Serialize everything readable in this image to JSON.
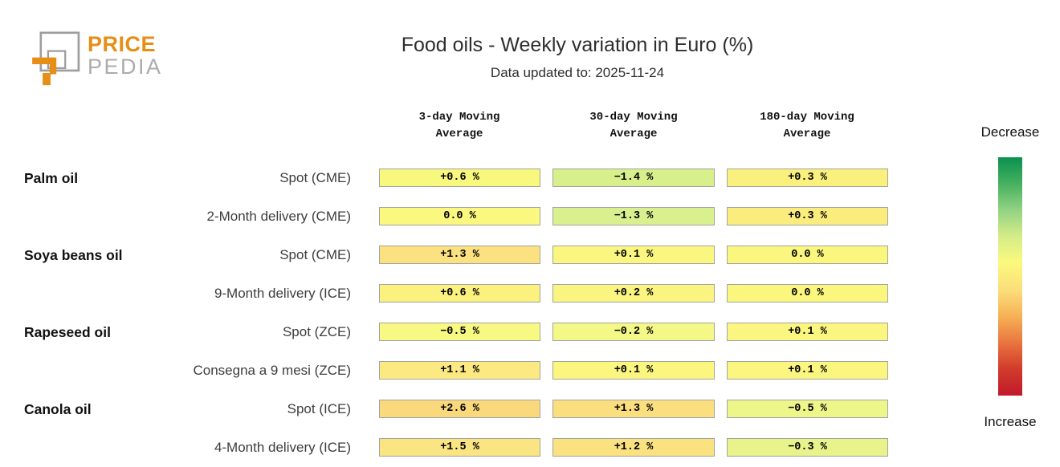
{
  "logo": {
    "brand_top": "PRICE",
    "brand_bottom": "PEDIA",
    "orange": "#e78e17",
    "gray": "#9e9e9e"
  },
  "header": {
    "title": "Food oils - Weekly variation in Euro (%)",
    "subtitle": "Data updated to: 2025-11-24"
  },
  "chart_data": {
    "type": "heatmap",
    "title": "Food oils - Weekly variation in Euro (%)",
    "subtitle": "Data updated to: 2025-11-24",
    "columns": [
      "3-day Moving Average",
      "30-day Moving Average",
      "180-day Moving Average"
    ],
    "rows": [
      {
        "group": "Palm oil",
        "label": "Spot (CME)",
        "values": [
          "+0.6 %",
          "−1.4 %",
          "+0.3 %"
        ],
        "values_num": [
          0.6,
          -1.4,
          0.3
        ],
        "colors": [
          "#f8f77e",
          "#d8ef8b",
          "#faf07d"
        ]
      },
      {
        "group": "",
        "label": "2-Month delivery (CME)",
        "values": [
          "0.0 %",
          "−1.3 %",
          "+0.3 %"
        ],
        "values_num": [
          0.0,
          -1.3,
          0.3
        ],
        "colors": [
          "#faf87e",
          "#daf08f",
          "#faec7d"
        ]
      },
      {
        "group": "Soya beans oil",
        "label": "Spot (CME)",
        "values": [
          "+1.3 %",
          "+0.1 %",
          "0.0 %"
        ],
        "values_num": [
          1.3,
          0.1,
          0.0
        ],
        "colors": [
          "#fbe180",
          "#fbf680",
          "#fbf77e"
        ]
      },
      {
        "group": "",
        "label": "9-Month delivery (ICE)",
        "values": [
          "+0.6 %",
          "+0.2 %",
          "0.0 %"
        ],
        "values_num": [
          0.6,
          0.2,
          0.0
        ],
        "colors": [
          "#faf17e",
          "#faf480",
          "#fbf77e"
        ]
      },
      {
        "group": "Rapeseed oil",
        "label": "Spot (ZCE)",
        "values": [
          "−0.5 %",
          "−0.2 %",
          "+0.1 %"
        ],
        "values_num": [
          -0.5,
          -0.2,
          0.1
        ],
        "colors": [
          "#f8f982",
          "#f4f886",
          "#fbf680"
        ]
      },
      {
        "group": "",
        "label": "Consegna a 9 mesi (ZCE)",
        "values": [
          "+1.1 %",
          "+0.1 %",
          "+0.1 %"
        ],
        "values_num": [
          1.1,
          0.1,
          0.1
        ],
        "colors": [
          "#fce981",
          "#fbf680",
          "#fbf680"
        ]
      },
      {
        "group": "Canola oil",
        "label": "Spot (ICE)",
        "values": [
          "+2.6 %",
          "+1.3 %",
          "−0.5 %"
        ],
        "values_num": [
          2.6,
          1.3,
          -0.5
        ],
        "colors": [
          "#fad97c",
          "#fbde7e",
          "#edf689"
        ]
      },
      {
        "group": "",
        "label": "4-Month delivery (ICE)",
        "values": [
          "+1.5 %",
          "+1.2 %",
          "−0.3 %"
        ],
        "values_num": [
          1.5,
          1.2,
          -0.3
        ],
        "colors": [
          "#fbe482",
          "#fbe281",
          "#e8f48b"
        ]
      }
    ],
    "colorbar": {
      "top_label": "Decrease",
      "bottom_label": "Increase",
      "gradient": [
        "#0a9150",
        "#46b05f",
        "#92d283",
        "#d3ec88",
        "#fbf97e",
        "#fbdd7a",
        "#f6b055",
        "#e8743f",
        "#d13a2b",
        "#c11a2b"
      ]
    }
  }
}
